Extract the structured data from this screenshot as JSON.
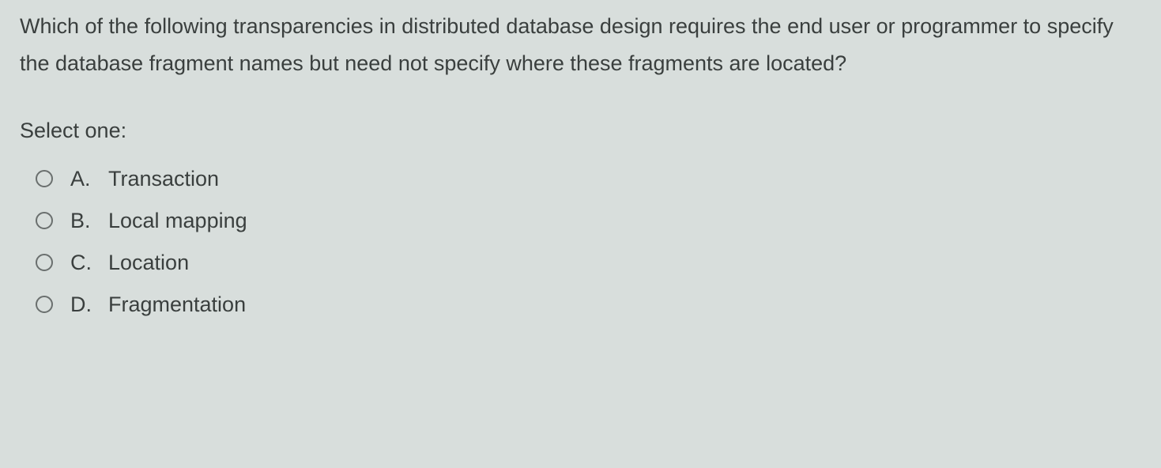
{
  "question": {
    "text": "Which of the following transparencies in distributed database design requires the end user or programmer to specify the database fragment names but need not specify where these fragments are located?",
    "prompt": "Select one:",
    "options": [
      {
        "letter": "A.",
        "label": "Transaction"
      },
      {
        "letter": "B.",
        "label": "Local mapping"
      },
      {
        "letter": "C.",
        "label": "Location"
      },
      {
        "letter": "D.",
        "label": "Fragmentation"
      }
    ]
  },
  "colors": {
    "background": "#d8dedc",
    "text": "#3a3f3e",
    "radio_border": "#6a6f6e"
  },
  "typography": {
    "font_family": "Segoe UI",
    "question_fontsize": 27,
    "option_fontsize": 27
  }
}
